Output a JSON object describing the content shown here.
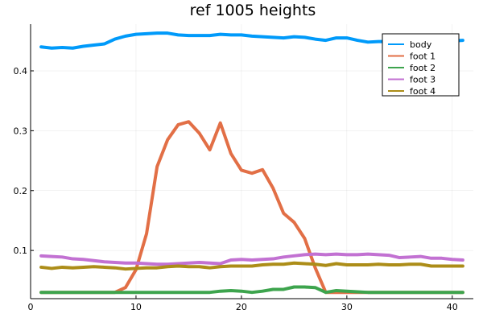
{
  "chart_data": {
    "type": "line",
    "title": "ref 1005 heights",
    "xlabel": "",
    "ylabel": "",
    "xlim": [
      0,
      42
    ],
    "ylim": [
      0.0195,
      0.478
    ],
    "xticks": [
      0,
      10,
      20,
      30,
      40
    ],
    "yticks": [
      0.1,
      0.2,
      0.3,
      0.4
    ],
    "grid": true,
    "legend_position": "top-right",
    "x": [
      1,
      2,
      3,
      4,
      5,
      6,
      7,
      8,
      9,
      10,
      11,
      12,
      13,
      14,
      15,
      16,
      17,
      18,
      19,
      20,
      21,
      22,
      23,
      24,
      25,
      26,
      27,
      28,
      29,
      30,
      31,
      32,
      33,
      34,
      35,
      36,
      37,
      38,
      39,
      40,
      41
    ],
    "series": [
      {
        "name": "body",
        "color": "#009AFA",
        "values": [
          0.44,
          0.438,
          0.439,
          0.438,
          0.441,
          0.443,
          0.445,
          0.453,
          0.458,
          0.461,
          0.462,
          0.463,
          0.463,
          0.46,
          0.459,
          0.459,
          0.459,
          0.461,
          0.46,
          0.46,
          0.458,
          0.457,
          0.456,
          0.455,
          0.457,
          0.456,
          0.453,
          0.451,
          0.455,
          0.455,
          0.451,
          0.448,
          0.449,
          0.449,
          0.448,
          0.449,
          0.45,
          0.45,
          0.451,
          0.45,
          0.451
        ]
      },
      {
        "name": "foot 1",
        "color": "#E26F46",
        "values": [
          0.03,
          0.03,
          0.03,
          0.03,
          0.03,
          0.03,
          0.03,
          0.03,
          0.038,
          0.068,
          0.128,
          0.24,
          0.285,
          0.31,
          0.315,
          0.296,
          0.268,
          0.313,
          0.262,
          0.234,
          0.229,
          0.235,
          0.204,
          0.162,
          0.147,
          0.12,
          0.071,
          0.03,
          0.03,
          0.03,
          0.03,
          0.03,
          0.03,
          0.03,
          0.03,
          0.03,
          0.03,
          0.03,
          0.03,
          0.03,
          0.03
        ]
      },
      {
        "name": "foot 2",
        "color": "#3DA44D",
        "values": [
          0.03,
          0.03,
          0.03,
          0.03,
          0.03,
          0.03,
          0.03,
          0.03,
          0.03,
          0.03,
          0.03,
          0.03,
          0.03,
          0.03,
          0.03,
          0.03,
          0.03,
          0.032,
          0.033,
          0.032,
          0.03,
          0.032,
          0.035,
          0.035,
          0.039,
          0.039,
          0.038,
          0.03,
          0.033,
          0.032,
          0.031,
          0.03,
          0.03,
          0.03,
          0.03,
          0.03,
          0.03,
          0.03,
          0.03,
          0.03,
          0.03
        ]
      },
      {
        "name": "foot 3",
        "color": "#C271D2",
        "values": [
          0.091,
          0.09,
          0.089,
          0.086,
          0.085,
          0.083,
          0.081,
          0.08,
          0.079,
          0.079,
          0.078,
          0.077,
          0.077,
          0.078,
          0.079,
          0.08,
          0.079,
          0.078,
          0.084,
          0.085,
          0.084,
          0.085,
          0.086,
          0.089,
          0.091,
          0.093,
          0.094,
          0.093,
          0.094,
          0.093,
          0.093,
          0.094,
          0.093,
          0.092,
          0.088,
          0.089,
          0.09,
          0.087,
          0.087,
          0.085,
          0.084
        ]
      },
      {
        "name": "foot 4",
        "color": "#AC8D18",
        "values": [
          0.072,
          0.07,
          0.072,
          0.071,
          0.072,
          0.073,
          0.072,
          0.071,
          0.069,
          0.07,
          0.071,
          0.071,
          0.073,
          0.074,
          0.073,
          0.073,
          0.071,
          0.073,
          0.074,
          0.074,
          0.074,
          0.076,
          0.077,
          0.077,
          0.079,
          0.078,
          0.077,
          0.075,
          0.078,
          0.076,
          0.076,
          0.076,
          0.077,
          0.076,
          0.076,
          0.077,
          0.077,
          0.074,
          0.074,
          0.074,
          0.074
        ]
      }
    ]
  }
}
